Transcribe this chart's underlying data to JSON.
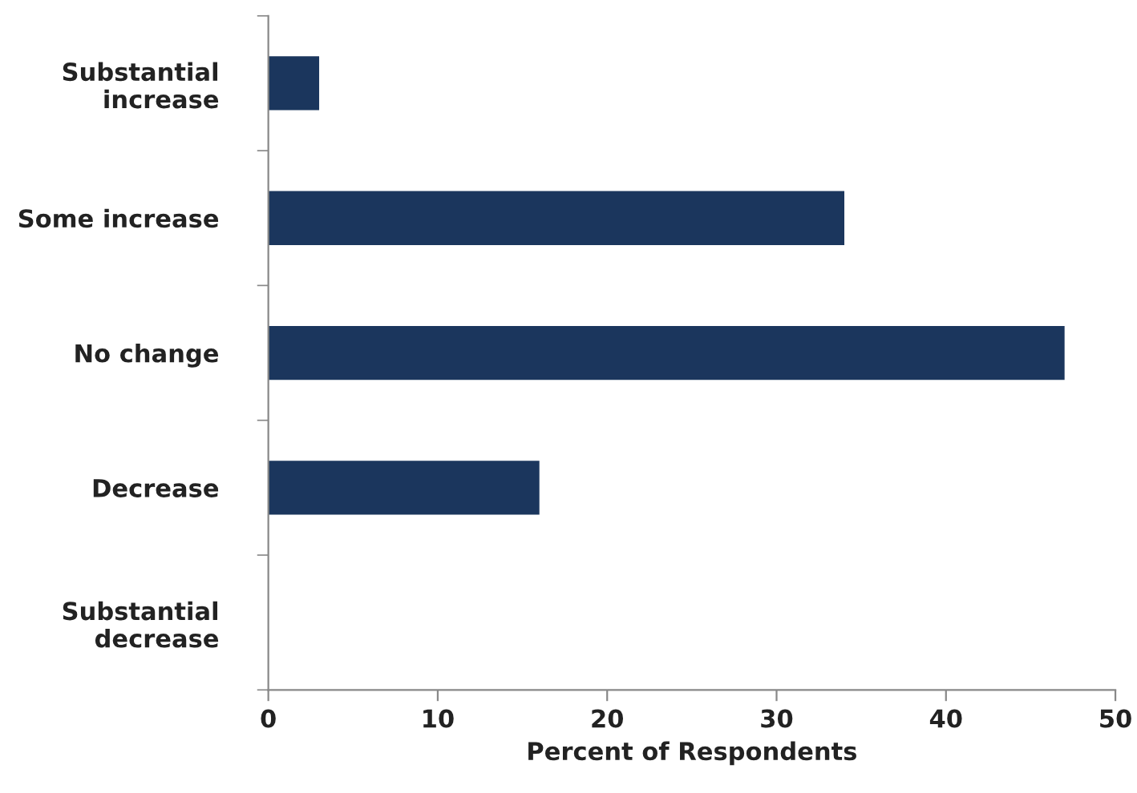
{
  "chart_data": {
    "type": "bar",
    "orientation": "horizontal",
    "categories": [
      "Substantial increase",
      "Some increase",
      "No change",
      "Decrease",
      "Substantial decrease"
    ],
    "values": [
      3,
      34,
      47,
      16,
      0
    ],
    "color": "#1b365d",
    "xlim": [
      0,
      50
    ],
    "xticks": [
      0,
      10,
      20,
      30,
      40,
      50
    ],
    "xlabel": "Percent of Respondents",
    "grid": false,
    "legend": false
  }
}
